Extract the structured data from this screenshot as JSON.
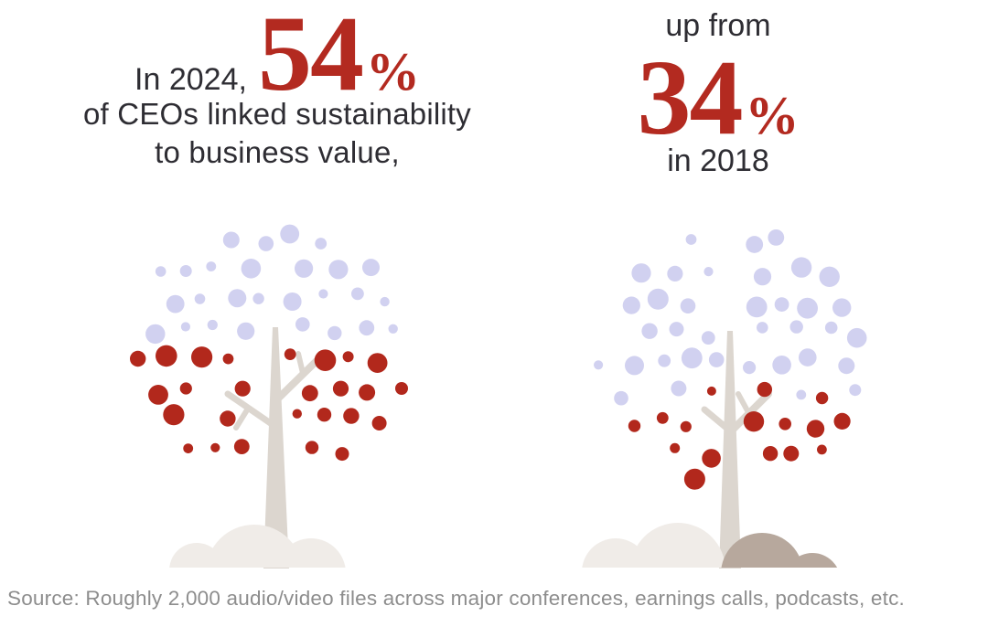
{
  "headline_left": {
    "prefix": "In 2024,",
    "big_number": "54",
    "percent_sign": "%",
    "line2": "of CEOs linked sustainability",
    "line3": "to business value,"
  },
  "headline_right": {
    "prefix": "up from",
    "big_number": "34",
    "percent_sign": "%",
    "suffix": "in 2018"
  },
  "source": {
    "text": "Source: Roughly 2,000 audio/video files across major conferences, earnings calls, podcasts, etc."
  },
  "colors": {
    "accent_red": "#b32a20",
    "dot_red": "#b2281c",
    "dot_lavender": "#d1d1f0",
    "text_dark": "#2e2d33",
    "source_gray": "#8d8d8d",
    "trunk": "#dcd6cf",
    "mound_light": "#f0ece8",
    "mound_dark": "#b7a89d"
  },
  "chart_data": {
    "type": "pictogram",
    "title": "In 2024, 54% of CEOs linked sustainability to business value, up from 34% in 2018",
    "unit": "% of CEOs",
    "categories": [
      "2024",
      "2018"
    ],
    "series": [
      {
        "name": "2024",
        "value_pct": 54,
        "caption": "In 2024, 54% of CEOs linked sustainability to business value,"
      },
      {
        "name": "2018",
        "value_pct": 34,
        "caption": "up from 34% in 2018"
      }
    ],
    "encoding": "Each tree canopy is a dot pictogram: red dots (bottom portion) = share of CEOs linking sustainability to business value; lavender dots (top portion) = remainder",
    "source": "Roughly 2,000 audio/video files across major conferences, earnings calls, podcasts, etc."
  }
}
